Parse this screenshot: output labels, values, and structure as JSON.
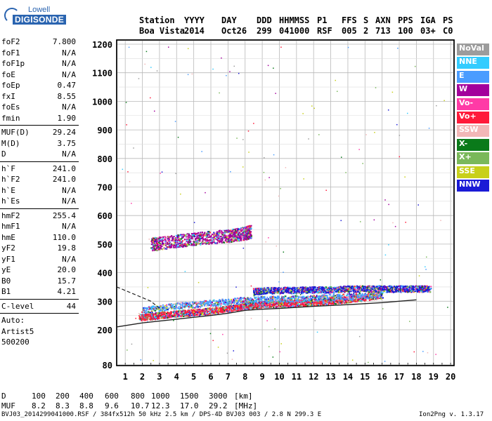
{
  "logo": {
    "line1": "Lowell",
    "line2": "DIGISONDE"
  },
  "header": {
    "row1": [
      "Station",
      "YYYY",
      "DAY",
      "DDD",
      "HHMMSS",
      "P1",
      "FFS",
      "S",
      "AXN",
      "PPS",
      "IGA",
      "PS"
    ],
    "row2": [
      "Boa Vista",
      "2014",
      "Oct26",
      "299",
      "041000",
      "RSF",
      "005",
      "2",
      "713",
      "100",
      "03+",
      "C0"
    ]
  },
  "params": {
    "group1": [
      [
        "foF2",
        "7.800"
      ],
      [
        "foF1",
        "N/A"
      ],
      [
        "foF1p",
        "N/A"
      ],
      [
        "foE",
        "N/A"
      ],
      [
        "foEp",
        "0.47"
      ],
      [
        "fxI",
        "8.55"
      ],
      [
        "foEs",
        "N/A"
      ],
      [
        "fmin",
        "1.90"
      ]
    ],
    "group2": [
      [
        "MUF(D)",
        "29.24"
      ],
      [
        "M(D)",
        "3.75"
      ],
      [
        "D",
        "N/A"
      ]
    ],
    "group3": [
      [
        "h`F",
        "241.0"
      ],
      [
        "h`F2",
        "241.0"
      ],
      [
        "h`E",
        "N/A"
      ],
      [
        "h`Es",
        "N/A"
      ]
    ],
    "group4": [
      [
        "hmF2",
        "255.4"
      ],
      [
        "hmF1",
        "N/A"
      ],
      [
        "hmE",
        "110.0"
      ],
      [
        "yF2",
        "19.8"
      ],
      [
        "yF1",
        "N/A"
      ],
      [
        "yE",
        "20.0"
      ],
      [
        "B0",
        "15.7"
      ],
      [
        "B1",
        "4.21"
      ]
    ],
    "group5": [
      [
        "C-level",
        "44"
      ]
    ],
    "auto": [
      "Auto:",
      "Artist5",
      "500200"
    ]
  },
  "legend": [
    {
      "label": "NoVal",
      "color": "#9c9c9c"
    },
    {
      "label": "NNE",
      "color": "#33ccff"
    },
    {
      "label": "E",
      "color": "#4a9cff"
    },
    {
      "label": "W",
      "color": "#a3009c"
    },
    {
      "label": "Vo-",
      "color": "#ff3aa6"
    },
    {
      "label": "Vo+",
      "color": "#ff1a3a"
    },
    {
      "label": "SSW",
      "color": "#f2b7b7"
    },
    {
      "label": "X-",
      "color": "#0a7a1a"
    },
    {
      "label": "X+",
      "color": "#7ab85a"
    },
    {
      "label": "SSE",
      "color": "#c8d01a"
    },
    {
      "label": "NNW",
      "color": "#1a1ad6"
    }
  ],
  "bottom": {
    "row1": [
      "D",
      "100",
      "200",
      "400",
      "600",
      "800",
      "1000",
      "1500",
      "3000",
      "[km]"
    ],
    "row2": [
      "MUF",
      "8.2",
      "8.3",
      "8.8",
      "9.6",
      "10.7",
      "12.3",
      "17.0",
      "29.2",
      "[MHz]"
    ],
    "footer_left": "BVJ03_2014299041000.RSF / 384fx512h 50 kHz 2.5 km / DPS-4D BVJ03 003 / 2.8 N 299.3 E",
    "footer_right": "Ion2Png v. 1.3.17"
  },
  "chart_data": {
    "type": "scatter",
    "xlim": [
      0.5,
      20.2
    ],
    "ylim": [
      80,
      1210
    ],
    "xticks": [
      1,
      2,
      3,
      4,
      5,
      6,
      7,
      8,
      9,
      10,
      11,
      12,
      13,
      14,
      15,
      16,
      17,
      18,
      19,
      20
    ],
    "yticks": [
      80,
      200,
      300,
      400,
      500,
      600,
      700,
      800,
      900,
      1000,
      1100,
      1200
    ],
    "grid": true,
    "legend_position": "right",
    "traces": [
      {
        "name": "F2 trace O (Vo+)",
        "color": "#ff1a3a",
        "x": [
          1.8,
          2.5,
          3.0,
          4.0,
          5.0,
          6.0,
          7.0,
          8.0,
          9.0,
          10.0,
          11.0,
          12.0,
          13.0,
          14.0,
          15.0,
          16.0
        ],
        "y": [
          245,
          248,
          252,
          258,
          262,
          268,
          275,
          285,
          290,
          292,
          295,
          298,
          302,
          308,
          315,
          325
        ]
      },
      {
        "name": "F2 trace X (NNW)",
        "color": "#1a1ad6",
        "x": [
          8.5,
          9.0,
          10.0,
          11.0,
          12.0,
          13.0,
          14.0,
          15.0,
          16.0,
          17.0,
          18.0,
          18.8
        ],
        "y": [
          335,
          338,
          340,
          340,
          342,
          342,
          345,
          345,
          345,
          345,
          345,
          345
        ]
      },
      {
        "name": "multi-hop (W)",
        "color": "#a3009c",
        "x": [
          2.5,
          3.0,
          4.0,
          5.0,
          6.0,
          7.0,
          7.5,
          8.0,
          8.3
        ],
        "y": [
          500,
          505,
          512,
          520,
          525,
          530,
          535,
          540,
          545
        ]
      },
      {
        "name": "oblique (E)",
        "color": "#4a9cff",
        "x": [
          2.0,
          4.0,
          6.0,
          8.0,
          10.0,
          12.0,
          14.0,
          16.0
        ],
        "y": [
          270,
          285,
          295,
          305,
          310,
          312,
          318,
          322
        ]
      }
    ],
    "profile_solid": {
      "x": [
        0.5,
        2,
        4,
        6,
        7,
        8,
        9,
        10,
        12,
        14,
        16,
        18
      ],
      "y": [
        210,
        224,
        237,
        250,
        258,
        268,
        272,
        275,
        282,
        288,
        295,
        305
      ]
    },
    "profile_dashed": {
      "x": [
        0.5,
        1.5,
        2.5,
        3.0
      ],
      "y": [
        350,
        325,
        300,
        275
      ]
    }
  }
}
